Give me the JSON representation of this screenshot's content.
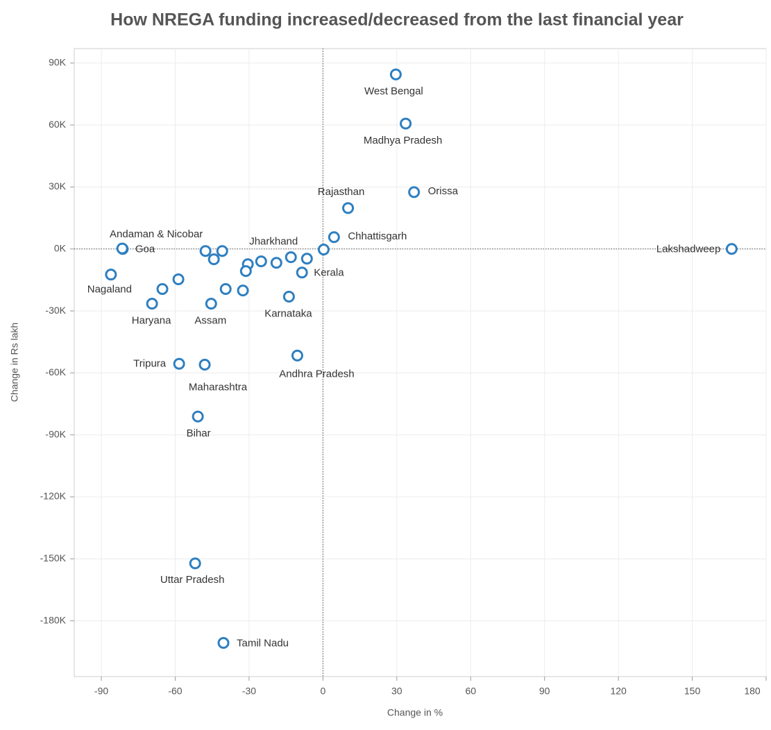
{
  "chart_data": {
    "type": "scatter",
    "title": "How NREGA funding increased/decreased from the last financial year",
    "x_label": "Change in %",
    "y_label": "Change in Rs lakh",
    "color": "#2e7fc0",
    "grid": true,
    "xlim": [
      -101,
      180
    ],
    "ylim": [
      -207000,
      97000
    ],
    "xticks": [
      -90,
      -60,
      -30,
      0,
      30,
      60,
      90,
      120,
      150,
      180
    ],
    "yticks": [
      {
        "value": 90000,
        "label": "90K"
      },
      {
        "value": 60000,
        "label": "60K"
      },
      {
        "value": 30000,
        "label": "30K"
      },
      {
        "value": 0,
        "label": "0K"
      },
      {
        "value": -30000,
        "label": "-30K"
      },
      {
        "value": -60000,
        "label": "-60K"
      },
      {
        "value": -90000,
        "label": "-90K"
      },
      {
        "value": -120000,
        "label": "-120K"
      },
      {
        "value": -150000,
        "label": "-150K"
      },
      {
        "value": -180000,
        "label": "-180K"
      }
    ],
    "labels": [
      "West Bengal",
      "Madhya Pradesh",
      "Orissa",
      "Rajasthan",
      "Chhattisgarh",
      null,
      "Lakshadweep",
      "Goa",
      "Andaman & Nicobar",
      null,
      null,
      null,
      null,
      null,
      null,
      null,
      "Jharkhand",
      null,
      "Kerala",
      "Karnataka",
      "Nagaland",
      null,
      null,
      "Haryana",
      "Assam",
      null,
      null,
      "Tripura",
      "Maharashtra",
      "Andhra Pradesh",
      "Bihar",
      "Uttar Pradesh",
      "Tamil Nadu"
    ],
    "x": [
      29.6,
      33.6,
      37,
      10.2,
      4.5,
      0.3,
      166,
      -81.3,
      -81.5,
      -47.7,
      -40.9,
      -44.3,
      -30.5,
      -31.3,
      -25.1,
      -18.9,
      -13,
      -6.5,
      -8.5,
      -13.8,
      -86.1,
      -65.2,
      -58.7,
      -69.4,
      -45.4,
      -39.5,
      -32.5,
      -58.4,
      -48,
      -10.4,
      -50.8,
      -51.9,
      -40.4
    ],
    "values": [
      84500,
      60700,
      27500,
      19800,
      5700,
      -300,
      0,
      0,
      200,
      -1000,
      -1000,
      -5000,
      -7400,
      -10700,
      -6000,
      -6700,
      -4000,
      -4700,
      -11400,
      -23100,
      -12400,
      -19400,
      -14700,
      -26500,
      -26500,
      -19400,
      -20100,
      -55600,
      -56000,
      -51600,
      -81100,
      -152200,
      -190700
    ]
  }
}
